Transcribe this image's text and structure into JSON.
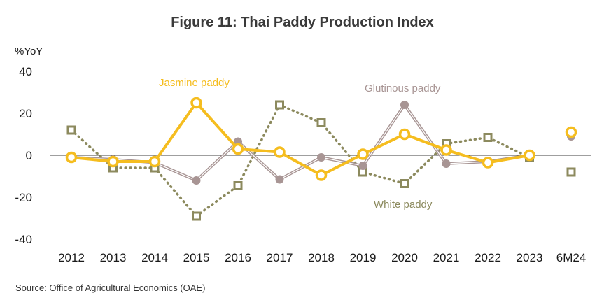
{
  "chart_data": {
    "type": "line",
    "title": "Figure 11: Thai Paddy Production Index",
    "ylabel": "%YoY",
    "xlabel": "",
    "ylim": [
      -40,
      40
    ],
    "yticks": [
      40,
      20,
      0,
      -20,
      -40
    ],
    "categories": [
      "2012",
      "2013",
      "2014",
      "2015",
      "2016",
      "2017",
      "2018",
      "2019",
      "2020",
      "2021",
      "2022",
      "2023",
      "6M24"
    ],
    "series": [
      {
        "name": "White paddy",
        "label": "White paddy",
        "color": "#8c8a5e",
        "values": [
          12,
          -6,
          -6,
          -29,
          -14.5,
          24,
          15.5,
          -8,
          -13.5,
          5.5,
          8.5,
          -1,
          -8
        ],
        "connected_points": 12
      },
      {
        "name": "Glutinous paddy",
        "label": "Glutinous paddy",
        "color": "#a89594",
        "values": [
          -1,
          -2,
          -3.5,
          -12,
          6.5,
          -11.5,
          -1,
          -5,
          24,
          -4,
          -3,
          0,
          9
        ],
        "connected_points": 12
      },
      {
        "name": "Jasmine paddy",
        "label": "Jasmine paddy",
        "color": "#f5bd1f",
        "values": [
          -1,
          -3,
          -3,
          25,
          3,
          1.5,
          -9.5,
          0.5,
          10,
          2.5,
          -3.5,
          0,
          11
        ],
        "connected_points": 12
      }
    ],
    "source": "Source: Office of Agricultural Economics (OAE)"
  }
}
